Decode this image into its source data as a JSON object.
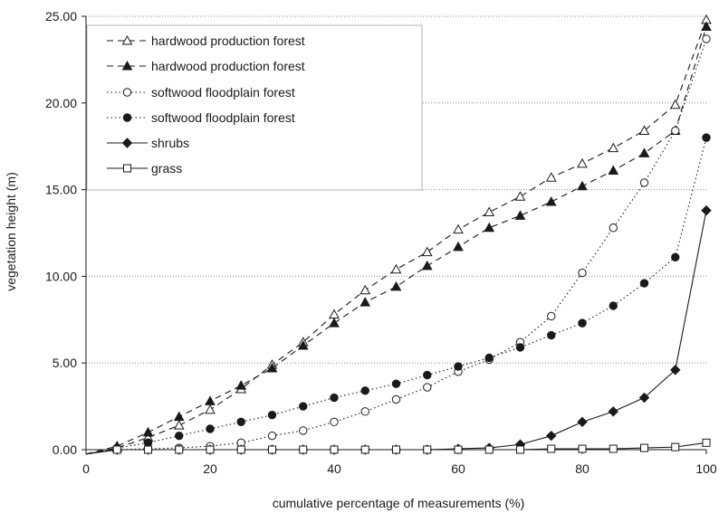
{
  "chart_data": {
    "type": "line",
    "xlabel": "cumulative percentage of measurements (%)",
    "ylabel": "vegetation height (m)",
    "xlim": [
      0,
      100
    ],
    "ylim": [
      0,
      25
    ],
    "x_ticks": [
      "0",
      "20",
      "40",
      "60",
      "80",
      "100"
    ],
    "y_ticks": [
      "0.00",
      "5.00",
      "10.00",
      "15.00",
      "20.00",
      "25.00"
    ],
    "grid": "horizontal dotted",
    "legend_position": "top-left",
    "x": [
      5,
      10,
      15,
      20,
      25,
      30,
      35,
      40,
      45,
      50,
      55,
      60,
      65,
      70,
      75,
      80,
      85,
      90,
      95,
      100
    ],
    "series": [
      {
        "name": "hardwood production forest",
        "line": "dashed",
        "marker": "triangle-open",
        "values": [
          0.1,
          0.7,
          1.4,
          2.3,
          3.5,
          4.9,
          6.2,
          7.8,
          9.2,
          10.4,
          11.4,
          12.7,
          13.7,
          14.6,
          15.7,
          16.5,
          17.4,
          18.4,
          19.9,
          24.8
        ]
      },
      {
        "name": "hardwood production forest",
        "line": "dashed",
        "marker": "triangle-filled",
        "values": [
          0.2,
          1.0,
          1.9,
          2.8,
          3.7,
          4.7,
          6.0,
          7.3,
          8.5,
          9.4,
          10.6,
          11.7,
          12.8,
          13.5,
          14.3,
          15.2,
          16.1,
          17.1,
          18.4,
          24.4
        ]
      },
      {
        "name": "softwood floodplain forest",
        "line": "dotted",
        "marker": "circle-open",
        "values": [
          0.0,
          0.05,
          0.1,
          0.2,
          0.4,
          0.8,
          1.1,
          1.6,
          2.2,
          2.9,
          3.6,
          4.5,
          5.2,
          6.2,
          7.7,
          10.2,
          12.8,
          15.4,
          18.4,
          23.7
        ]
      },
      {
        "name": "softwood floodplain forest",
        "line": "dotted",
        "marker": "circle-filled",
        "values": [
          0.1,
          0.4,
          0.8,
          1.2,
          1.6,
          2.0,
          2.5,
          3.0,
          3.4,
          3.8,
          4.3,
          4.8,
          5.3,
          5.9,
          6.6,
          7.3,
          8.3,
          9.6,
          11.1,
          18.0
        ]
      },
      {
        "name": "shrubs",
        "line": "solid",
        "marker": "diamond-filled",
        "values": [
          0.0,
          0.0,
          0.0,
          0.0,
          0.0,
          0.0,
          0.0,
          0.0,
          0.0,
          0.0,
          0.0,
          0.05,
          0.1,
          0.3,
          0.8,
          1.6,
          2.2,
          3.0,
          4.6,
          13.8
        ]
      },
      {
        "name": "grass",
        "line": "solid",
        "marker": "square-open",
        "values": [
          0.0,
          0.0,
          0.0,
          0.0,
          0.0,
          0.0,
          0.0,
          0.0,
          0.0,
          0.0,
          0.0,
          0.0,
          0.0,
          0.0,
          0.05,
          0.05,
          0.05,
          0.1,
          0.15,
          0.4
        ]
      }
    ]
  }
}
